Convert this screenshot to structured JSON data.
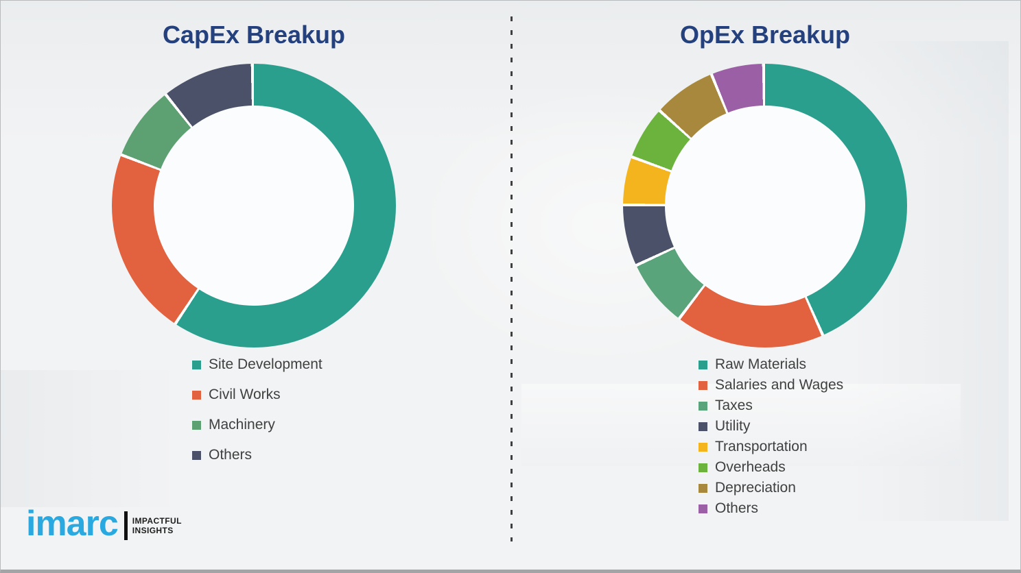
{
  "chart_data": [
    {
      "type": "pie",
      "variant": "donut",
      "title": "CapEx Breakup",
      "labels": [
        "Site Development",
        "Civil Works",
        "Machinery",
        "Others"
      ],
      "values": [
        59.5,
        21.5,
        8.5,
        10.5
      ],
      "colors": [
        "#2b9f8e",
        "#e2613f",
        "#5da173",
        "#4a5168"
      ],
      "start_angle_deg": 0,
      "direction": "clockwise",
      "legend_position": "below-left",
      "value_labels_shown": false,
      "values_note": "percent, estimated from arc angles"
    },
    {
      "type": "pie",
      "variant": "donut",
      "title": "OpEx Breakup",
      "labels": [
        "Raw Materials",
        "Salaries and Wages",
        "Taxes",
        "Utility",
        "Transportation",
        "Overheads",
        "Depreciation",
        "Others"
      ],
      "values": [
        43.5,
        17.0,
        7.75,
        7.0,
        5.5,
        6.1,
        7.15,
        6.0
      ],
      "colors": [
        "#2b9f8e",
        "#e2613f",
        "#5aa47b",
        "#4a5168",
        "#f4b41e",
        "#6cb33e",
        "#a8883c",
        "#9b5fa5"
      ],
      "start_angle_deg": 0,
      "direction": "clockwise",
      "legend_position": "below-left",
      "value_labels_shown": false,
      "values_note": "percent, estimated from arc angles"
    }
  ],
  "logo": {
    "brand": "imarc",
    "tagline_line1": "IMPACTFUL",
    "tagline_line2": "INSIGHTS"
  }
}
